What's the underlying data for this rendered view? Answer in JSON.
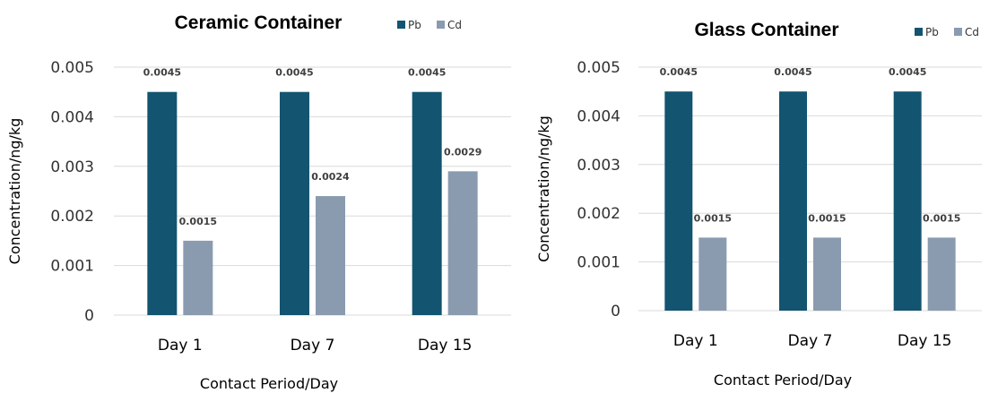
{
  "colors": {
    "Pb": "#135470",
    "Cd": "#8a9bb0",
    "grid": "#d9d9d9"
  },
  "chart_data": [
    {
      "type": "bar",
      "title": "Ceramic Container",
      "xlabel": "Contact Period/Day",
      "ylabel": "Concentration/ng/kg",
      "ylim": [
        0,
        0.005
      ],
      "yticks": [
        "0",
        "0.001",
        "0.002",
        "0.003",
        "0.004",
        "0.005"
      ],
      "categories": [
        "Day 1",
        "Day 7",
        "Day 15"
      ],
      "series": [
        {
          "name": "Pb",
          "values": [
            0.0045,
            0.0045,
            0.0045
          ],
          "labels": [
            "0.0045",
            "0.0045",
            "0.0045"
          ]
        },
        {
          "name": "Cd",
          "values": [
            0.0015,
            0.0024,
            0.0029
          ],
          "labels": [
            "0.0015",
            "0.0024",
            "0.0029"
          ]
        }
      ],
      "legend": "top-right",
      "grid": true
    },
    {
      "type": "bar",
      "title": "Glass Container",
      "xlabel": "Contact Period/Day",
      "ylabel": "Concentration/ng/kg",
      "ylim": [
        0,
        0.005
      ],
      "yticks": [
        "0",
        "0.001",
        "0.002",
        "0.003",
        "0.004",
        "0.005"
      ],
      "categories": [
        "Day 1",
        "Day 7",
        "Day 15"
      ],
      "series": [
        {
          "name": "Pb",
          "values": [
            0.0045,
            0.0045,
            0.0045
          ],
          "labels": [
            "0.0045",
            "0.0045",
            "0.0045"
          ]
        },
        {
          "name": "Cd",
          "values": [
            0.0015,
            0.0015,
            0.0015
          ],
          "labels": [
            "0.0015",
            "0.0015",
            "0.0015"
          ]
        }
      ],
      "legend": "top-right",
      "grid": true
    }
  ]
}
